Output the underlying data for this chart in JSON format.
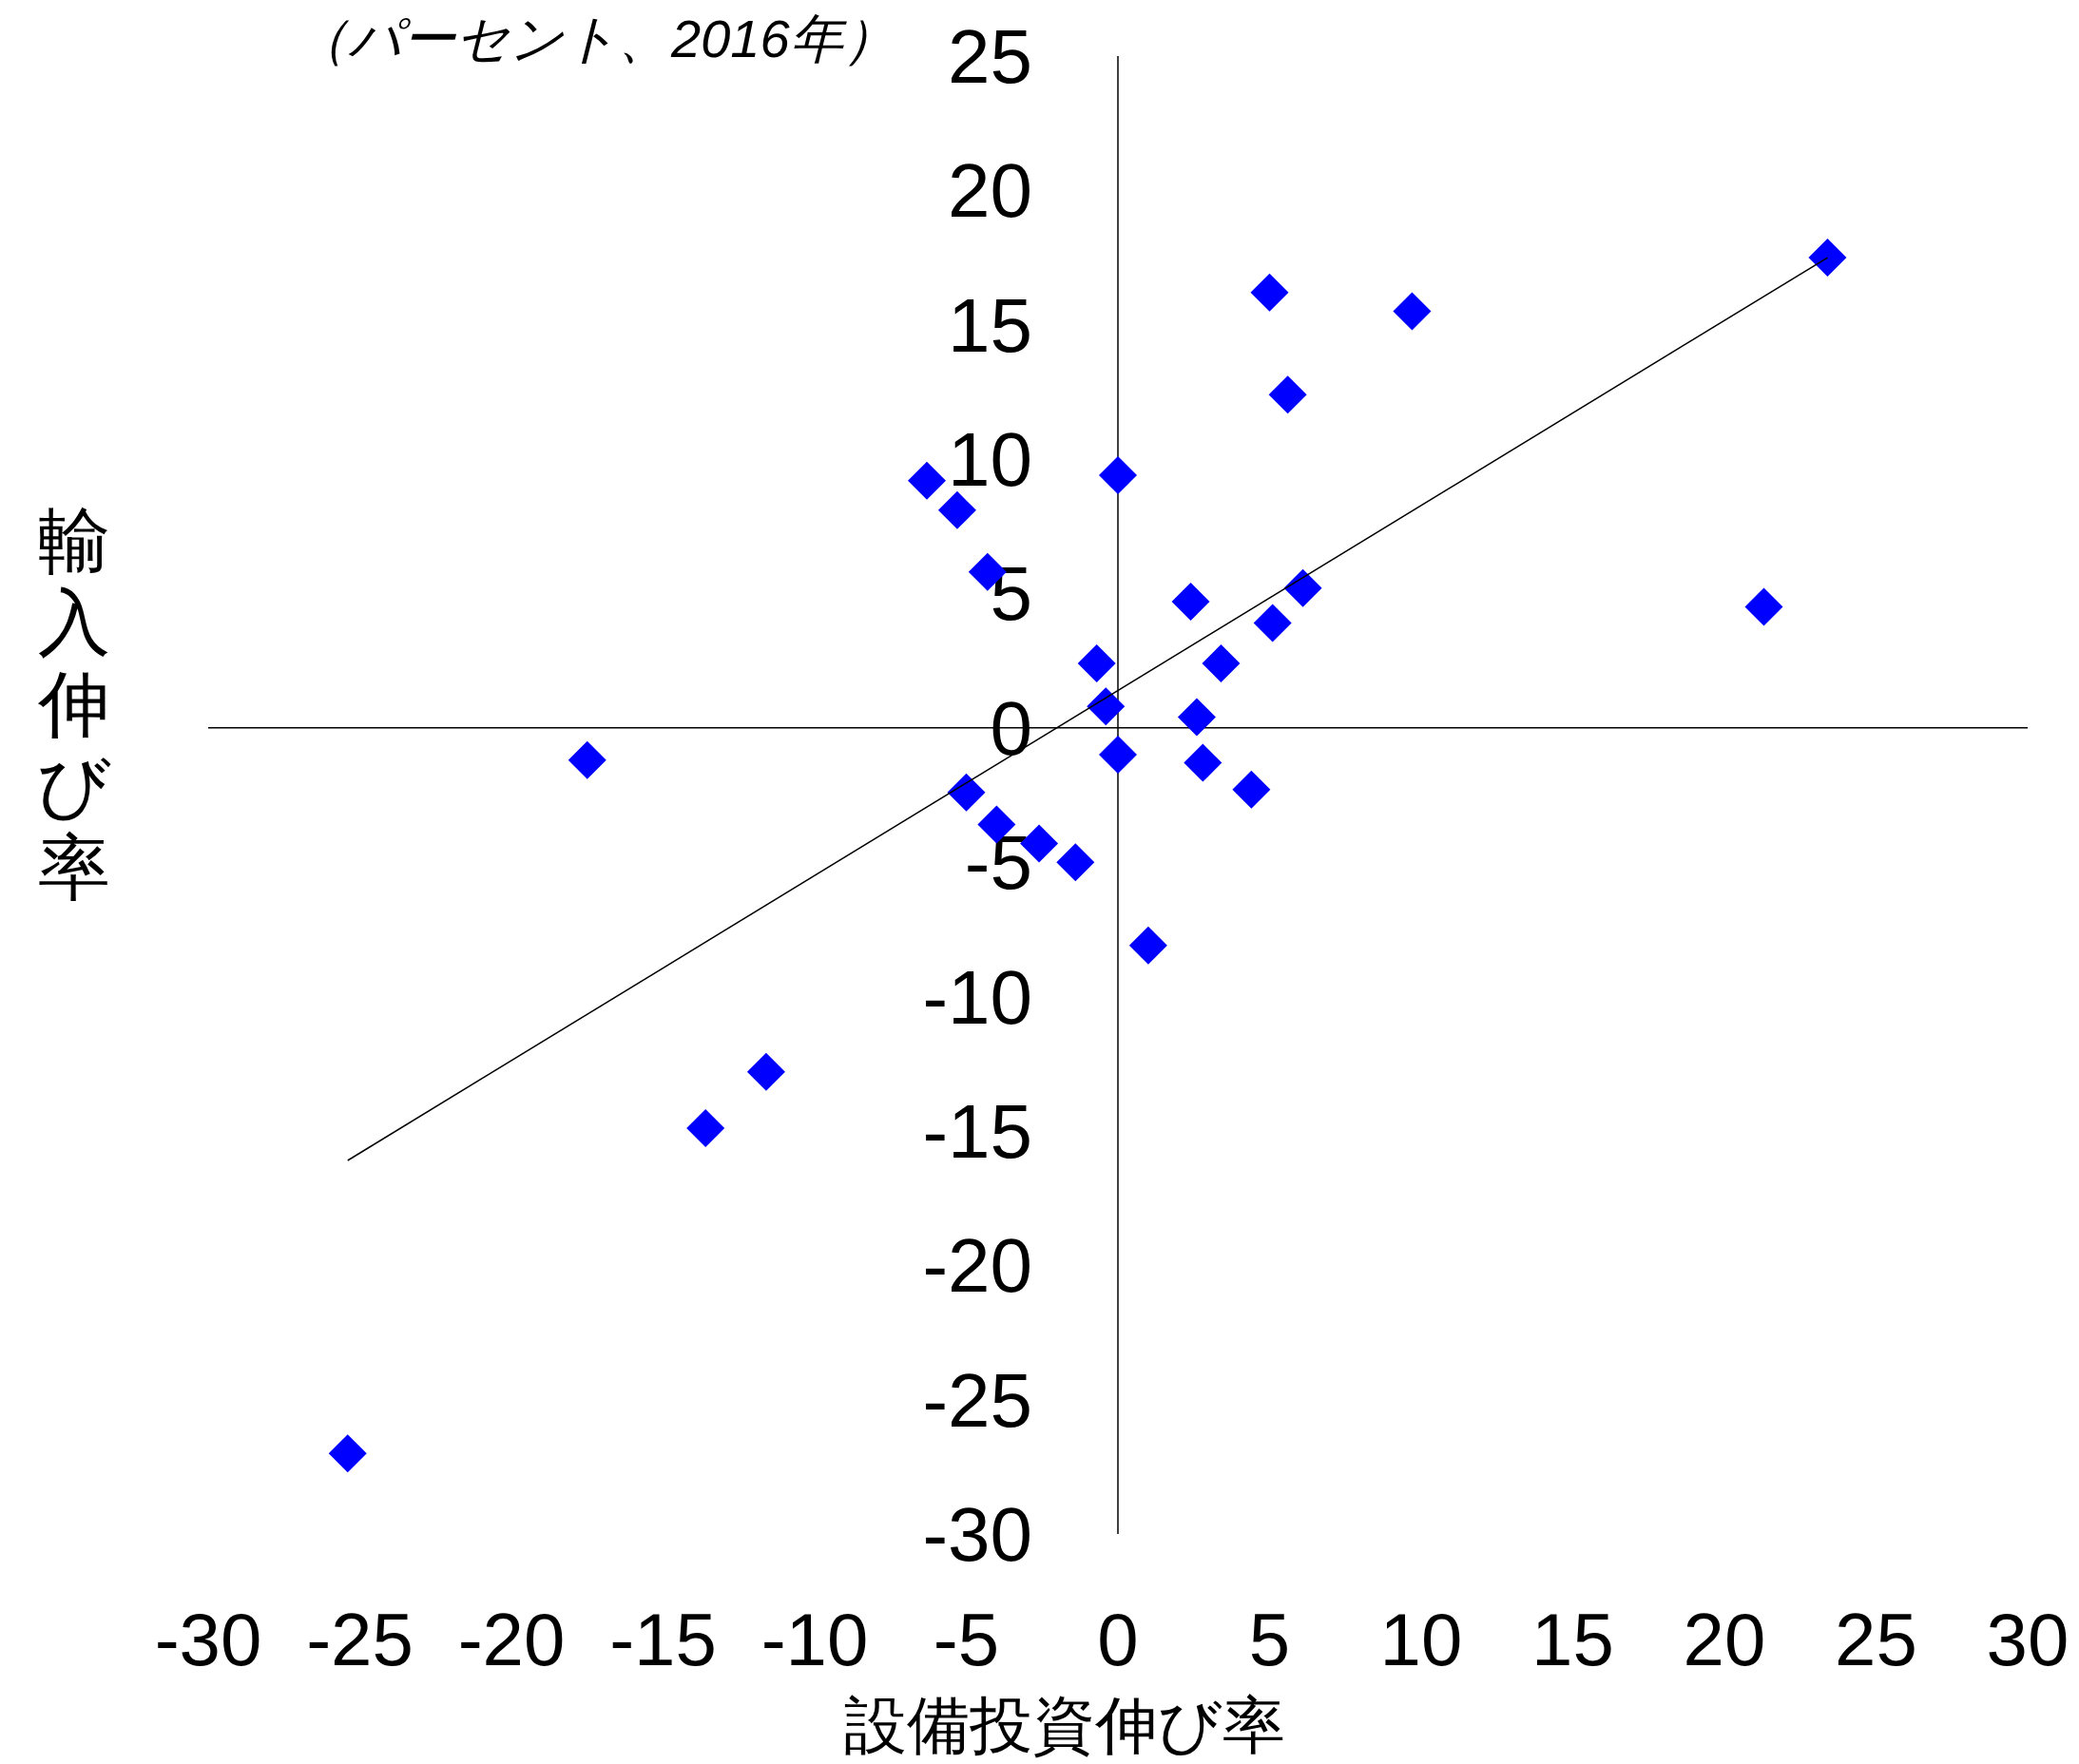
{
  "chart_data": {
    "type": "scatter",
    "title": "（パーセント、2016年）",
    "xlabel": "設備投資伸び率",
    "ylabel": "輸入伸び率",
    "xlim": [
      -30,
      30
    ],
    "ylim": [
      -30,
      25
    ],
    "xticks": [
      -30,
      -25,
      -20,
      -15,
      -10,
      -5,
      0,
      5,
      10,
      15,
      20,
      25,
      30
    ],
    "yticks": [
      -30,
      -25,
      -20,
      -15,
      -10,
      -5,
      0,
      5,
      10,
      15,
      20,
      25
    ],
    "series": [
      {
        "type": "scatter",
        "color": "#0000ff",
        "marker": "diamond",
        "x": [
          23.4,
          5.0,
          9.7,
          5.6,
          -6.3,
          0.0,
          -5.3,
          -4.3,
          6.1,
          2.4,
          21.3,
          5.1,
          3.4,
          -0.7,
          -0.4,
          2.6,
          0.0,
          -17.5,
          2.8,
          4.4,
          -5.0,
          -4.0,
          -2.6,
          -1.4,
          1.0,
          -11.6,
          -13.6,
          -25.4
        ],
        "values": [
          17.5,
          16.2,
          15.5,
          12.4,
          9.2,
          9.4,
          8.1,
          5.8,
          5.2,
          4.7,
          4.5,
          3.9,
          2.4,
          2.4,
          0.8,
          0.4,
          -1.0,
          -1.2,
          -1.3,
          -2.3,
          -2.4,
          -3.6,
          -4.3,
          -5.0,
          -8.1,
          -12.8,
          -14.9,
          -27.0
        ]
      },
      {
        "type": "line",
        "color": "#000000",
        "line_style": "solid",
        "x": [
          -25.4,
          23.4
        ],
        "values": [
          -16.1,
          17.5
        ]
      }
    ]
  }
}
